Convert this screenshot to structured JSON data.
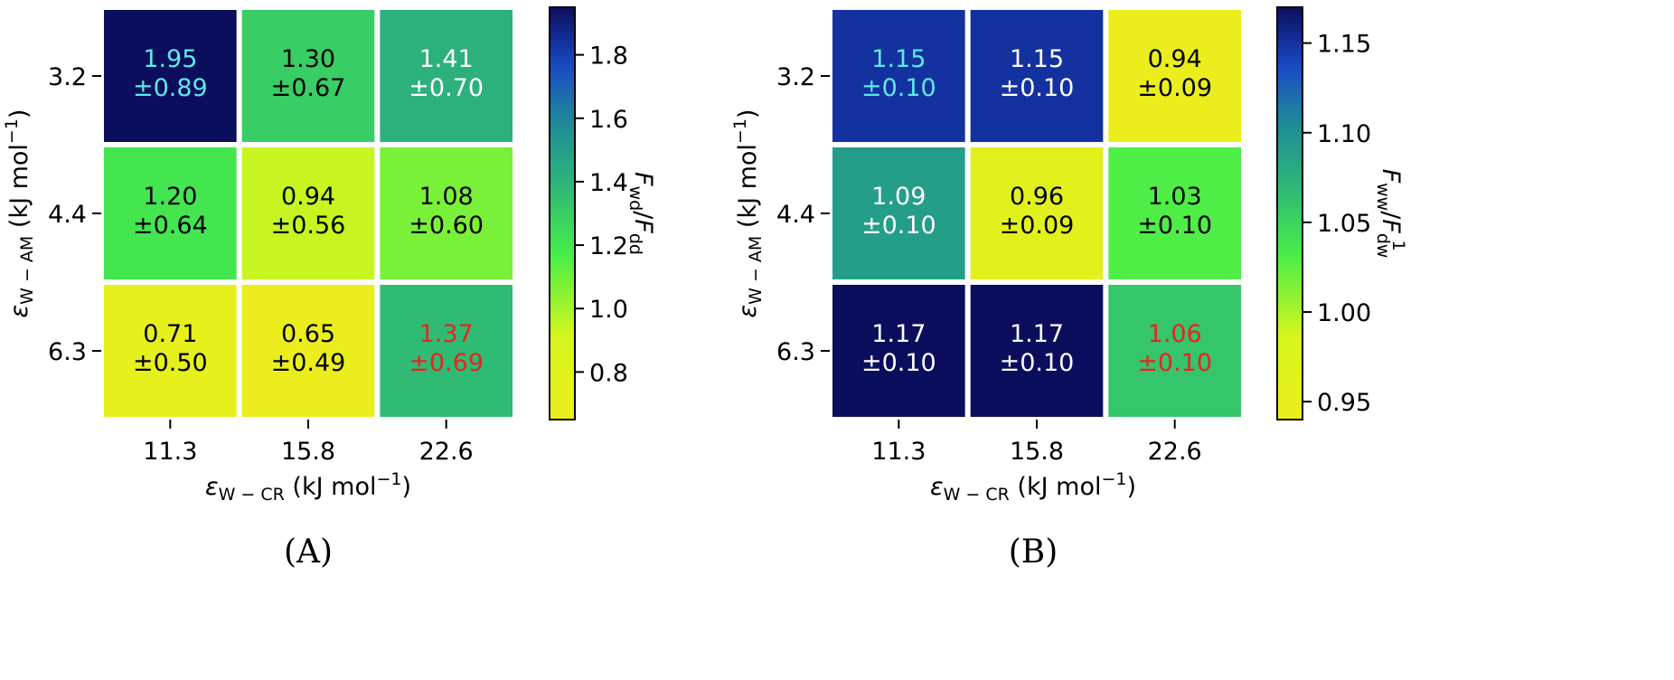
{
  "chart_data": [
    {
      "type": "heatmap",
      "panel_label": "(A)",
      "x_tick_labels": [
        "11.3",
        "15.8",
        "22.6"
      ],
      "y_tick_labels": [
        "3.2",
        "4.4",
        "6.3"
      ],
      "xlabel": {
        "main": "ε",
        "sub": "W − CR",
        "units": " (kJ mol",
        "sup": "−1",
        "close": ")"
      },
      "ylabel": {
        "main": "ε",
        "sub": "W − AM",
        "units": " (kJ mol",
        "sup": "−1",
        "close": ")"
      },
      "colorbar_label": {
        "f1": "F",
        "s1": "wd",
        "slash": "/",
        "f2": "F",
        "s2": "dd"
      },
      "colormap": "blue-green-yellow (reversed)",
      "colorbar_range": [
        0.65,
        1.95
      ],
      "colorbar_ticks": [
        0.8,
        1.0,
        1.2,
        1.4,
        1.6,
        1.8
      ],
      "colorbar_tick_labels": [
        "0.8",
        "1.0",
        "1.2",
        "1.4",
        "1.6",
        "1.8"
      ],
      "values": [
        [
          1.95,
          1.3,
          1.41
        ],
        [
          1.2,
          0.94,
          1.08
        ],
        [
          0.71,
          0.65,
          1.37
        ]
      ],
      "value_labels": [
        [
          "1.95",
          "1.30",
          "1.41"
        ],
        [
          "1.20",
          "0.94",
          "1.08"
        ],
        [
          "0.71",
          "0.65",
          "1.37"
        ]
      ],
      "error_labels": [
        [
          "±0.89",
          "±0.67",
          "±0.70"
        ],
        [
          "±0.64",
          "±0.56",
          "±0.60"
        ],
        [
          "±0.50",
          "±0.49",
          "±0.69"
        ]
      ],
      "label_colors": [
        [
          "#5ee8e8",
          "#000000",
          "#ffffff"
        ],
        [
          "#000000",
          "#000000",
          "#000000"
        ],
        [
          "#000000",
          "#000000",
          "#e8241f"
        ]
      ]
    },
    {
      "type": "heatmap",
      "panel_label": "(B)",
      "x_tick_labels": [
        "11.3",
        "15.8",
        "22.6"
      ],
      "y_tick_labels": [
        "3.2",
        "4.4",
        "6.3"
      ],
      "xlabel": {
        "main": "ε",
        "sub": "W − CR",
        "units": " (kJ mol",
        "sup": "−1",
        "close": ")"
      },
      "ylabel": {
        "main": "ε",
        "sub": "W − AM",
        "units": " (kJ mol",
        "sup": "−1",
        "close": ")"
      },
      "colorbar_label": {
        "f1": "F",
        "s1": "ww",
        "slash": "/",
        "f2": "F",
        "s2": "dw",
        "sup2": "1"
      },
      "colormap": "blue-green-yellow (reversed)",
      "colorbar_range": [
        0.94,
        1.17
      ],
      "colorbar_ticks": [
        0.95,
        1.0,
        1.05,
        1.1,
        1.15
      ],
      "colorbar_tick_labels": [
        "0.95",
        "1.00",
        "1.05",
        "1.10",
        "1.15"
      ],
      "values": [
        [
          1.15,
          1.15,
          0.94
        ],
        [
          1.09,
          0.96,
          1.03
        ],
        [
          1.17,
          1.17,
          1.06
        ]
      ],
      "value_labels": [
        [
          "1.15",
          "1.15",
          "0.94"
        ],
        [
          "1.09",
          "0.96",
          "1.03"
        ],
        [
          "1.17",
          "1.17",
          "1.06"
        ]
      ],
      "error_labels": [
        [
          "±0.10",
          "±0.10",
          "±0.09"
        ],
        [
          "±0.10",
          "±0.09",
          "±0.10"
        ],
        [
          "±0.10",
          "±0.10",
          "±0.10"
        ]
      ],
      "label_colors": [
        [
          "#5ee8e8",
          "#ffffff",
          "#000000"
        ],
        [
          "#ffffff",
          "#000000",
          "#000000"
        ],
        [
          "#ffffff",
          "#ffffff",
          "#e8241f"
        ]
      ]
    }
  ]
}
